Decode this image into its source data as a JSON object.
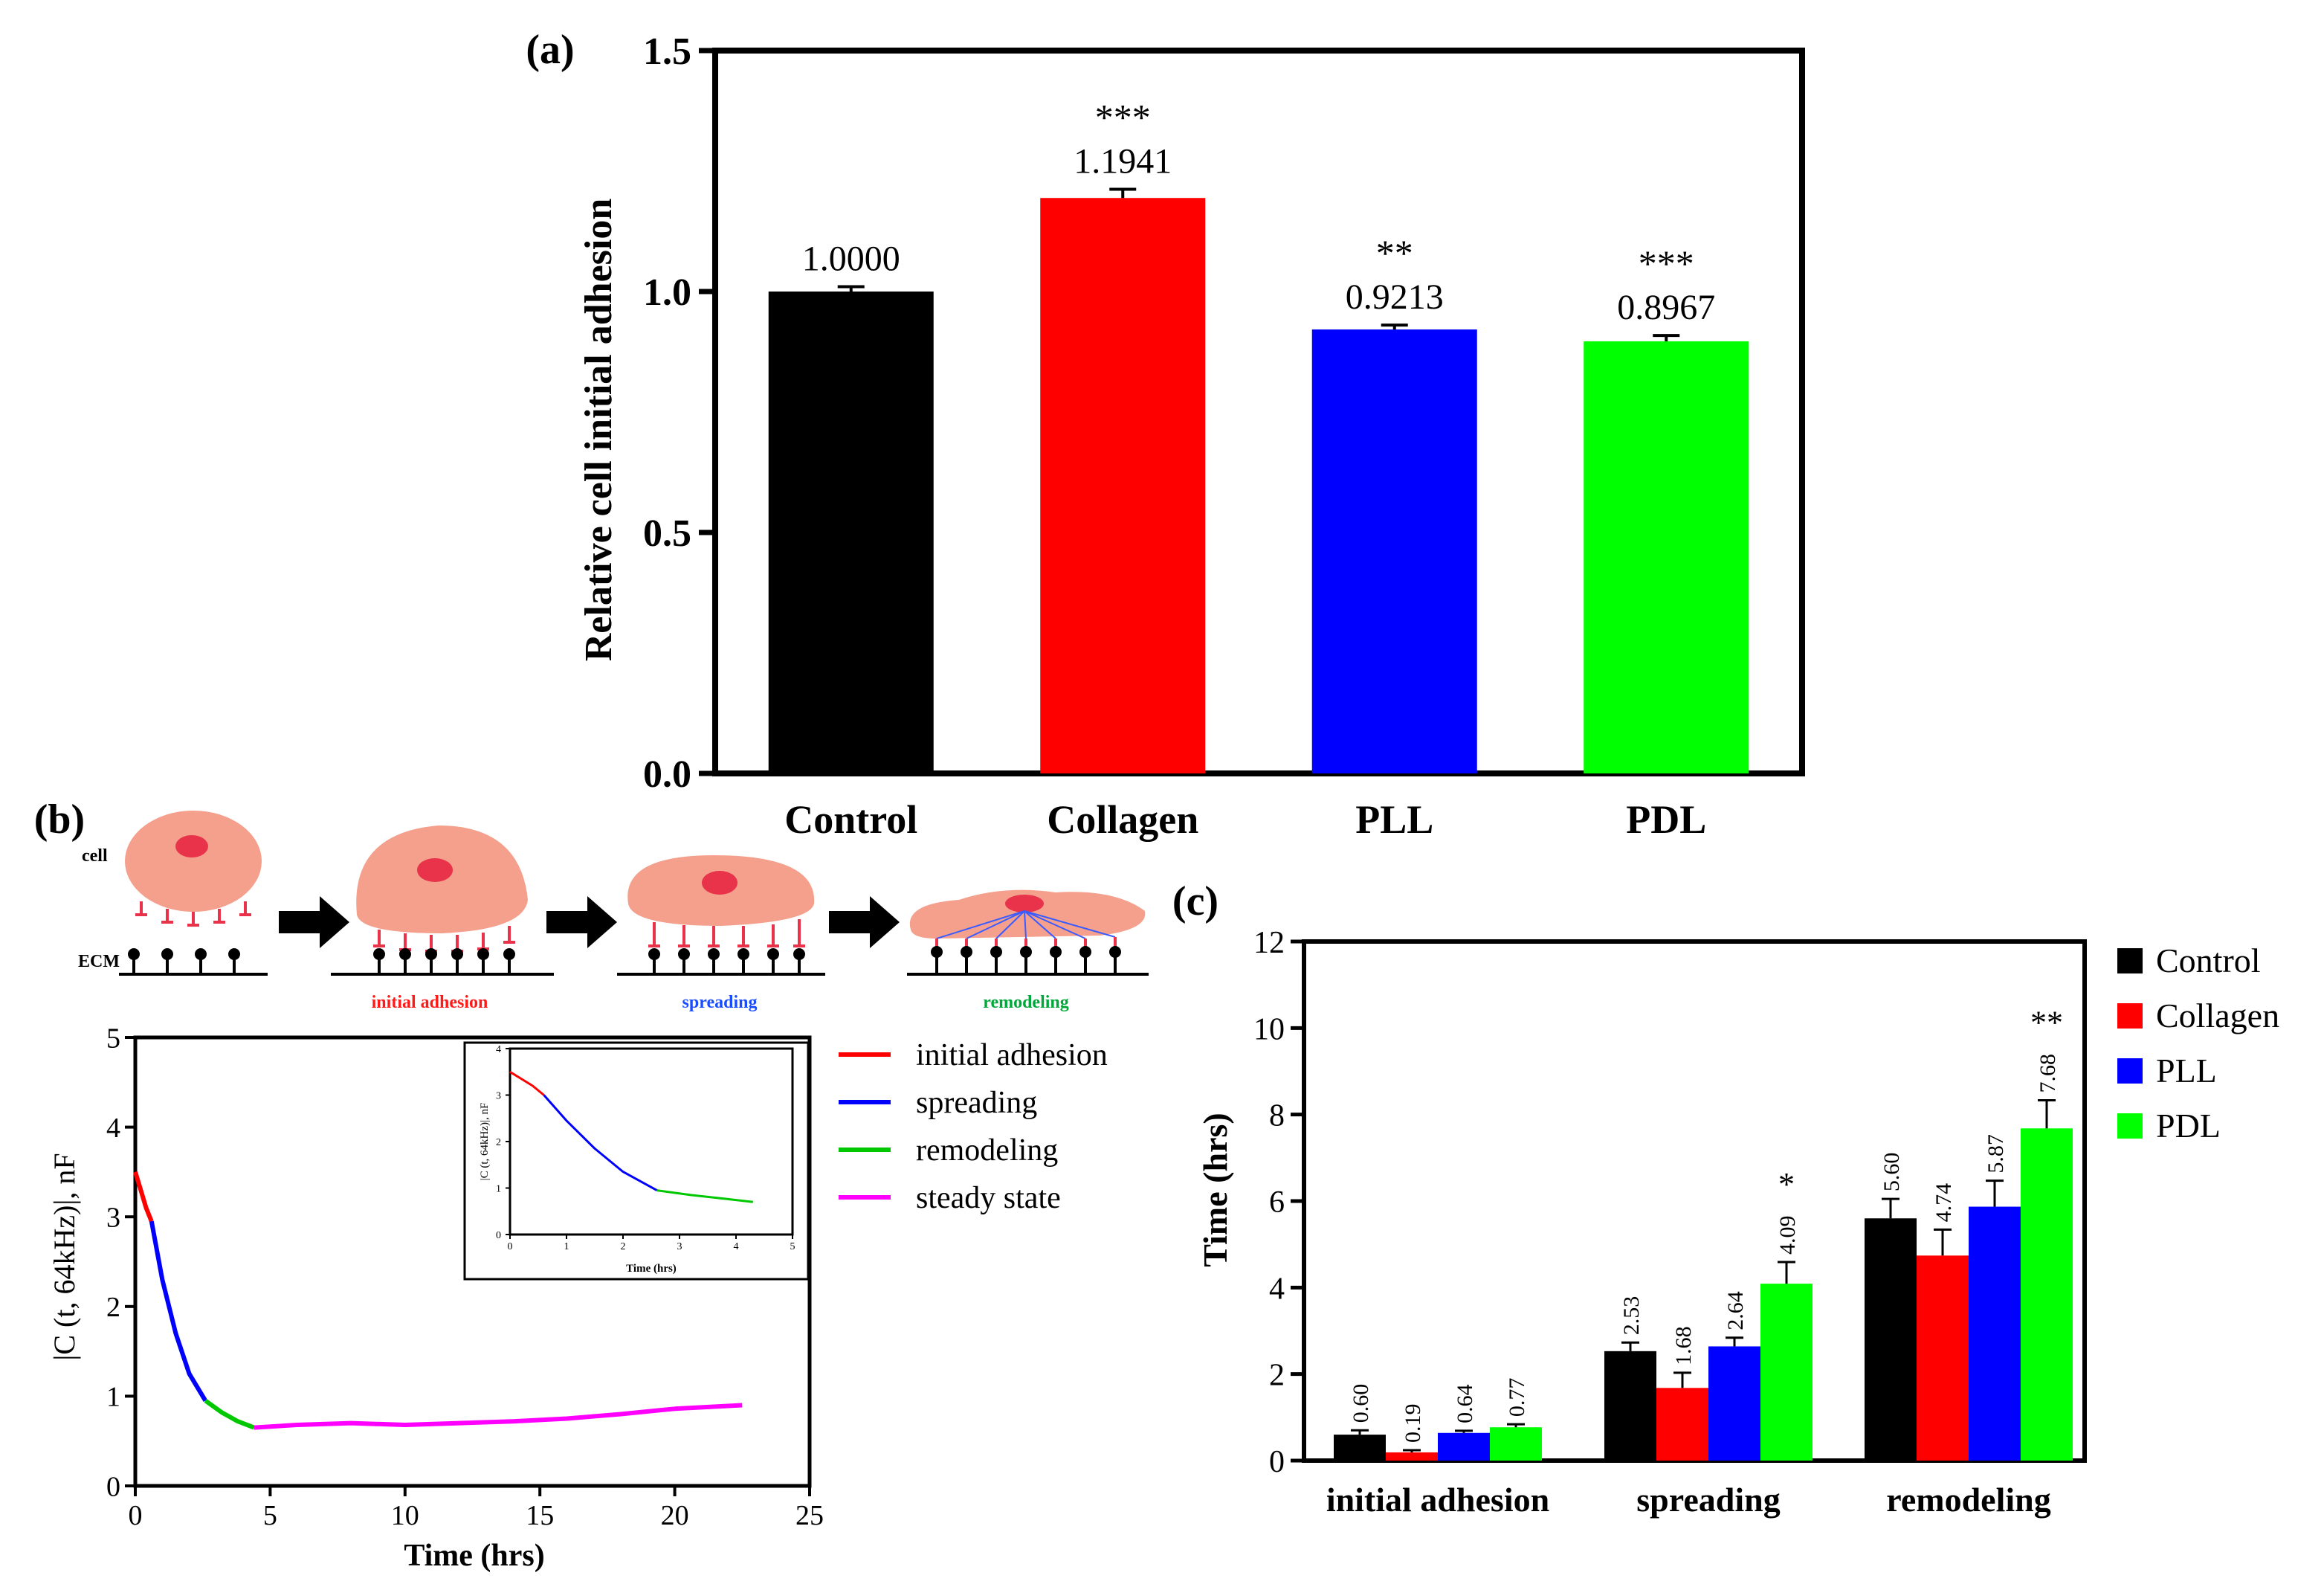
{
  "panel_labels": {
    "a": "(a)",
    "b": "(b)",
    "c": "(c)"
  },
  "schematic": {
    "cell_label": "cell",
    "ecm_label": "ECM",
    "stages": [
      {
        "label": "initial adhesion",
        "color": "#ff1a1a"
      },
      {
        "label": "spreading",
        "color": "#1a4dff"
      },
      {
        "label": "remodeling",
        "color": "#00a83a"
      }
    ],
    "cell_color": "#f4a08c",
    "nucleus_color": "#e8334a"
  },
  "chart_data": [
    {
      "id": "a",
      "type": "bar",
      "title": "",
      "xlabel": "",
      "ylabel": "Relative cell initial adhesion",
      "ylim": [
        0,
        1.5
      ],
      "yticks": [
        "0.0",
        "0.5",
        "1.0",
        "1.5"
      ],
      "categories": [
        "Control",
        "Collagen",
        "PLL",
        "PDL"
      ],
      "values": [
        1.0,
        1.1941,
        0.9213,
        0.8967
      ],
      "value_labels": [
        "1.0000",
        "1.1941",
        "0.9213",
        "0.8967"
      ],
      "errors": [
        0.01,
        0.018,
        0.009,
        0.012
      ],
      "significance": [
        "",
        "***",
        "**",
        "***"
      ],
      "colors": [
        "#000000",
        "#ff0000",
        "#0000ff",
        "#00ff00"
      ]
    },
    {
      "id": "b",
      "type": "line",
      "xlabel": "Time (hrs)",
      "ylabel": "|C (t, 64kHz)|, nF",
      "xlim": [
        0,
        25
      ],
      "ylim": [
        0,
        5
      ],
      "xticks": [
        "0",
        "5",
        "10",
        "15",
        "20",
        "25"
      ],
      "yticks": [
        "0",
        "1",
        "2",
        "3",
        "4",
        "5"
      ],
      "series": [
        {
          "name": "initial adhesion",
          "color": "#ff0000",
          "x": [
            0,
            0.2,
            0.4,
            0.6
          ],
          "y": [
            3.5,
            3.3,
            3.1,
            2.95
          ]
        },
        {
          "name": "spreading",
          "color": "#0000ff",
          "x": [
            0.6,
            1.0,
            1.5,
            2.0,
            2.6
          ],
          "y": [
            2.95,
            2.3,
            1.7,
            1.25,
            0.95
          ]
        },
        {
          "name": "remodeling",
          "color": "#00c800",
          "x": [
            2.6,
            3.2,
            3.8,
            4.4
          ],
          "y": [
            0.95,
            0.82,
            0.72,
            0.65
          ]
        },
        {
          "name": "steady state",
          "color": "#ff00ff",
          "x": [
            4.4,
            6,
            8,
            10,
            12,
            14,
            16,
            18,
            20,
            22.5
          ],
          "y": [
            0.65,
            0.68,
            0.7,
            0.68,
            0.7,
            0.72,
            0.75,
            0.8,
            0.86,
            0.9
          ]
        }
      ],
      "inset": {
        "xlabel": "Time (hrs)",
        "ylabel": "|C (t, 64kHz)|, nF",
        "xlim": [
          0,
          5
        ],
        "ylim": [
          0,
          4
        ],
        "xticks": [
          "0",
          "1",
          "2",
          "3",
          "4",
          "5"
        ],
        "yticks": [
          "0",
          "1",
          "2",
          "3",
          "4"
        ],
        "series": [
          {
            "name": "initial adhesion",
            "color": "#ff0000",
            "x": [
              0,
              0.2,
              0.4,
              0.6
            ],
            "y": [
              3.5,
              3.35,
              3.2,
              3.0
            ]
          },
          {
            "name": "spreading",
            "color": "#0000ff",
            "x": [
              0.6,
              1.0,
              1.5,
              2.0,
              2.6
            ],
            "y": [
              3.0,
              2.45,
              1.85,
              1.35,
              0.95
            ]
          },
          {
            "name": "remodeling",
            "color": "#00c800",
            "x": [
              2.6,
              3.2,
              3.8,
              4.3
            ],
            "y": [
              0.95,
              0.85,
              0.77,
              0.7
            ]
          }
        ]
      }
    },
    {
      "id": "c",
      "type": "bar",
      "xlabel": "",
      "ylabel": "Time (hrs)",
      "ylim": [
        0,
        12
      ],
      "yticks": [
        "0",
        "2",
        "4",
        "6",
        "8",
        "10",
        "12"
      ],
      "categories": [
        "initial adhesion",
        "spreading",
        "remodeling"
      ],
      "series": [
        {
          "name": "Control",
          "color": "#000000",
          "values": [
            0.6,
            2.53,
            5.6
          ],
          "labels": [
            "0.60",
            "2.53",
            "5.60"
          ],
          "errors": [
            0.1,
            0.2,
            0.45
          ],
          "sig": [
            "",
            "",
            ""
          ]
        },
        {
          "name": "Collagen",
          "color": "#ff0000",
          "values": [
            0.19,
            1.68,
            4.74
          ],
          "labels": [
            "0.19",
            "1.68",
            "4.74"
          ],
          "errors": [
            0.05,
            0.35,
            0.6
          ],
          "sig": [
            "",
            "",
            ""
          ]
        },
        {
          "name": "PLL",
          "color": "#0000ff",
          "values": [
            0.64,
            2.64,
            5.87
          ],
          "labels": [
            "0.64",
            "2.64",
            "5.87"
          ],
          "errors": [
            0.05,
            0.2,
            0.6
          ],
          "sig": [
            "",
            "",
            ""
          ]
        },
        {
          "name": "PDL",
          "color": "#00ff00",
          "values": [
            0.77,
            4.09,
            7.68
          ],
          "labels": [
            "0.77",
            "4.09",
            "7.68"
          ],
          "errors": [
            0.07,
            0.5,
            0.65
          ],
          "sig": [
            "",
            "*",
            "**"
          ]
        }
      ]
    }
  ]
}
